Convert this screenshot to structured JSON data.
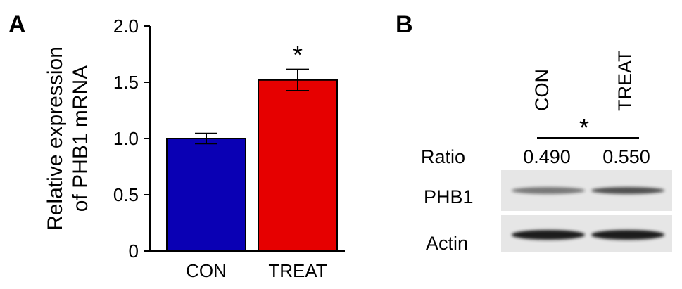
{
  "panel_a": {
    "letter": "A"
  },
  "panel_b": {
    "letter": "B",
    "lanes": [
      "CON",
      "TREAT"
    ],
    "significance": "*",
    "ratio_label": "Ratio",
    "ratios": [
      "0.490",
      "0.550"
    ],
    "rows": [
      {
        "label": "PHB1",
        "band_intensity": [
          0.55,
          0.75
        ]
      },
      {
        "label": "Actin",
        "band_intensity": [
          1.0,
          1.0
        ]
      }
    ],
    "blot_background": "#e6e6e6",
    "band_color": "#1a1a1a"
  },
  "chart_data": {
    "type": "bar",
    "categories": [
      "CON",
      "TREAT"
    ],
    "values": [
      1.0,
      1.52
    ],
    "errors": [
      0.045,
      0.095
    ],
    "colors": [
      "#0a00b4",
      "#e60000"
    ],
    "significance": [
      "",
      "*"
    ],
    "title": "",
    "xlabel": "",
    "ylabel": [
      "Relative expression",
      "of PHB1 mRNA"
    ],
    "ylim": [
      0,
      2.0
    ],
    "yticks": [
      "0",
      "0.5",
      "1.0",
      "1.5",
      "2.0"
    ],
    "grid": false
  }
}
